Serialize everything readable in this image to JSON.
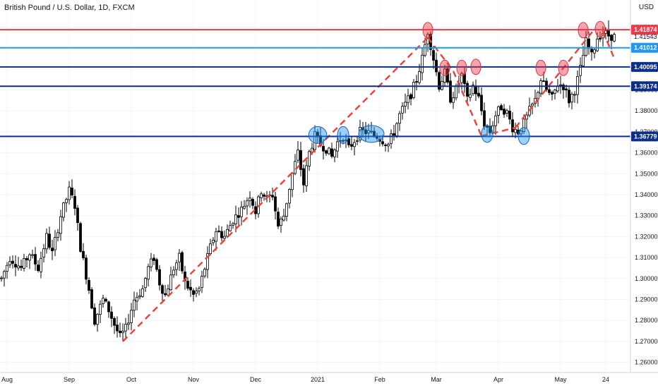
{
  "chart_data": {
    "type": "candlestick",
    "title": "British Pound / U.S. Dollar, 1D, FXCM",
    "currency": "USD",
    "ylim": [
      1.2555,
      1.4255
    ],
    "y_ticks": [
      1.26,
      1.27,
      1.28,
      1.29,
      1.3,
      1.31,
      1.32,
      1.33,
      1.34,
      1.35,
      1.36,
      1.37,
      1.38,
      1.39,
      1.4,
      1.41,
      1.42
    ],
    "y_tick_labels": [
      "1.26000",
      "1.27000",
      "1.28000",
      "1.29000",
      "1.30000",
      "1.31000",
      "1.32000",
      "1.33000",
      "1.34000",
      "1.35000",
      "1.36000",
      "1.37000",
      "1.38000",
      "1.39000",
      "1.40000",
      "1.41000",
      "1.42000"
    ],
    "x_labels": [
      {
        "label": "Aug",
        "index": 2
      },
      {
        "label": "Sep",
        "index": 24
      },
      {
        "label": "Oct",
        "index": 46
      },
      {
        "label": "Nov",
        "index": 68
      },
      {
        "label": "Dec",
        "index": 90
      },
      {
        "label": "2021",
        "index": 112
      },
      {
        "label": "Feb",
        "index": 134
      },
      {
        "label": "Mar",
        "index": 154
      },
      {
        "label": "Apr",
        "index": 176
      },
      {
        "label": "May",
        "index": 198
      },
      {
        "label": "24",
        "index": 214
      }
    ],
    "horizontal_levels": [
      {
        "value": 1.41874,
        "label": "1.41874",
        "color": "#f23645",
        "style": "solid"
      },
      {
        "value": 1.41012,
        "label": "1.41012",
        "color": "#2196f3",
        "style": "solid"
      },
      {
        "value": 1.40095,
        "label": "1.40095",
        "color": "#0d2f8c",
        "style": "solid"
      },
      {
        "value": 1.39174,
        "label": "1.39174",
        "color": "#0d2f8c",
        "style": "solid"
      },
      {
        "value": 1.36779,
        "label": "1.36779",
        "color": "#0d2f8c",
        "style": "solid"
      }
    ],
    "last_price": {
      "value": 1.41543,
      "label": "1.41543"
    },
    "trend_lines": [
      {
        "points": [
          [
            43,
            1.27
          ],
          [
            151,
            1.415
          ]
        ],
        "color": "#e8453c",
        "style": "dashed"
      },
      {
        "points": [
          [
            151,
            1.415
          ],
          [
            160,
            1.399
          ]
        ],
        "color": "#e8453c",
        "style": "dashed"
      },
      {
        "points": [
          [
            160,
            1.399
          ],
          [
            170,
            1.368
          ]
        ],
        "color": "#e8453c",
        "style": "dashed"
      },
      {
        "points": [
          [
            170,
            1.368
          ],
          [
            182,
            1.372
          ]
        ],
        "color": "#e8453c",
        "style": "dashed"
      },
      {
        "points": [
          [
            182,
            1.372
          ],
          [
            210,
            1.419
          ]
        ],
        "color": "#e8453c",
        "style": "dashed"
      },
      {
        "points": [
          [
            213,
            1.418
          ],
          [
            217,
            1.405
          ]
        ],
        "color": "#e8453c",
        "style": "dashed"
      }
    ],
    "resistance_markers": [
      {
        "index": 151,
        "value": 1.4185
      },
      {
        "index": 157,
        "value": 1.4005
      },
      {
        "index": 163,
        "value": 1.4005
      },
      {
        "index": 168,
        "value": 1.401
      },
      {
        "index": 191,
        "value": 1.4005
      },
      {
        "index": 199,
        "value": 1.4005
      },
      {
        "index": 206,
        "value": 1.4185
      },
      {
        "index": 212,
        "value": 1.419
      }
    ],
    "support_markers": [
      {
        "index": 112,
        "value": 1.3685,
        "w": 3.2
      },
      {
        "index": 121,
        "value": 1.3685,
        "w": 2.0
      },
      {
        "index": 131,
        "value": 1.369,
        "w": 4.5
      },
      {
        "index": 172,
        "value": 1.369,
        "w": 2.0
      },
      {
        "index": 185,
        "value": 1.368,
        "w": 2.0
      }
    ],
    "waypoints": [
      [
        0,
        1.3
      ],
      [
        3,
        1.31
      ],
      [
        7,
        1.305
      ],
      [
        10,
        1.312
      ],
      [
        13,
        1.305
      ],
      [
        16,
        1.32
      ],
      [
        18,
        1.312
      ],
      [
        21,
        1.33
      ],
      [
        24,
        1.342
      ],
      [
        26,
        1.335
      ],
      [
        28,
        1.315
      ],
      [
        31,
        1.295
      ],
      [
        33,
        1.28
      ],
      [
        36,
        1.29
      ],
      [
        38,
        1.285
      ],
      [
        40,
        1.278
      ],
      [
        42,
        1.272
      ],
      [
        44,
        1.276
      ],
      [
        47,
        1.29
      ],
      [
        50,
        1.295
      ],
      [
        52,
        1.305
      ],
      [
        54,
        1.31
      ],
      [
        56,
        1.298
      ],
      [
        58,
        1.292
      ],
      [
        61,
        1.305
      ],
      [
        63,
        1.31
      ],
      [
        65,
        1.298
      ],
      [
        68,
        1.292
      ],
      [
        70,
        1.295
      ],
      [
        72,
        1.305
      ],
      [
        74,
        1.315
      ],
      [
        76,
        1.323
      ],
      [
        79,
        1.32
      ],
      [
        82,
        1.328
      ],
      [
        85,
        1.333
      ],
      [
        88,
        1.34
      ],
      [
        90,
        1.332
      ],
      [
        92,
        1.342
      ],
      [
        94,
        1.338
      ],
      [
        96,
        1.34
      ],
      [
        98,
        1.325
      ],
      [
        100,
        1.33
      ],
      [
        103,
        1.35
      ],
      [
        105,
        1.36
      ],
      [
        107,
        1.345
      ],
      [
        109,
        1.36
      ],
      [
        111,
        1.368
      ],
      [
        113,
        1.364
      ],
      [
        115,
        1.362
      ],
      [
        117,
        1.358
      ],
      [
        119,
        1.365
      ],
      [
        121,
        1.368
      ],
      [
        123,
        1.362
      ],
      [
        125,
        1.366
      ],
      [
        127,
        1.37
      ],
      [
        129,
        1.37
      ],
      [
        131,
        1.369
      ],
      [
        133,
        1.368
      ],
      [
        135,
        1.366
      ],
      [
        137,
        1.364
      ],
      [
        139,
        1.37
      ],
      [
        141,
        1.378
      ],
      [
        143,
        1.383
      ],
      [
        145,
        1.388
      ],
      [
        147,
        1.395
      ],
      [
        149,
        1.405
      ],
      [
        151,
        1.418
      ],
      [
        153,
        1.405
      ],
      [
        155,
        1.392
      ],
      [
        157,
        1.398
      ],
      [
        159,
        1.386
      ],
      [
        161,
        1.39
      ],
      [
        163,
        1.397
      ],
      [
        165,
        1.385
      ],
      [
        167,
        1.392
      ],
      [
        169,
        1.386
      ],
      [
        171,
        1.374
      ],
      [
        173,
        1.37
      ],
      [
        175,
        1.378
      ],
      [
        177,
        1.382
      ],
      [
        179,
        1.379
      ],
      [
        181,
        1.372
      ],
      [
        183,
        1.37
      ],
      [
        185,
        1.374
      ],
      [
        187,
        1.38
      ],
      [
        189,
        1.385
      ],
      [
        191,
        1.395
      ],
      [
        193,
        1.39
      ],
      [
        195,
        1.386
      ],
      [
        197,
        1.393
      ],
      [
        199,
        1.392
      ],
      [
        201,
        1.385
      ],
      [
        203,
        1.39
      ],
      [
        205,
        1.4
      ],
      [
        207,
        1.413
      ],
      [
        209,
        1.406
      ],
      [
        211,
        1.415
      ],
      [
        213,
        1.4175
      ],
      [
        215,
        1.416
      ],
      [
        217,
        1.4154
      ]
    ],
    "grid": true,
    "up_color": "#ffffff",
    "down_color": "#000000",
    "outline_color": "#000000"
  }
}
